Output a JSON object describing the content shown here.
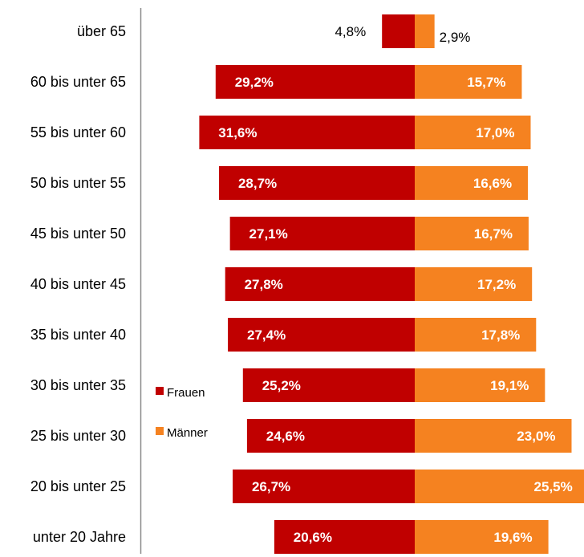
{
  "chart_data": {
    "type": "bar",
    "orientation": "horizontal-diverging",
    "title": "",
    "categories": [
      "über 65",
      "60 bis unter 65",
      "55 bis unter 60",
      "50 bis unter 55",
      "45 bis unter 50",
      "40 bis unter 45",
      "35 bis unter 40",
      "30 bis unter 35",
      "25 bis unter 30",
      "20 bis unter 25",
      "unter 20 Jahre"
    ],
    "series": [
      {
        "name": "Frauen",
        "color": "#c00000",
        "values": [
          4.8,
          29.2,
          31.6,
          28.7,
          27.1,
          27.8,
          27.4,
          25.2,
          24.6,
          26.7,
          20.6
        ],
        "labels": [
          "4,8%",
          "29,2%",
          "31,6%",
          "28,7%",
          "27,1%",
          "27,8%",
          "27,4%",
          "25,2%",
          "24,6%",
          "26,7%",
          "20,6%"
        ]
      },
      {
        "name": "Männer",
        "color": "#f58220",
        "values": [
          2.9,
          15.7,
          17.0,
          16.6,
          16.7,
          17.2,
          17.8,
          19.1,
          23.0,
          25.5,
          19.6
        ],
        "labels": [
          "2,9%",
          "15,7%",
          "17,0%",
          "16,6%",
          "16,7%",
          "17,2%",
          "17,8%",
          "19,1%",
          "23,0%",
          "25,5%",
          "19,6%"
        ]
      }
    ],
    "legend_position": "left-middle",
    "grid": false
  }
}
